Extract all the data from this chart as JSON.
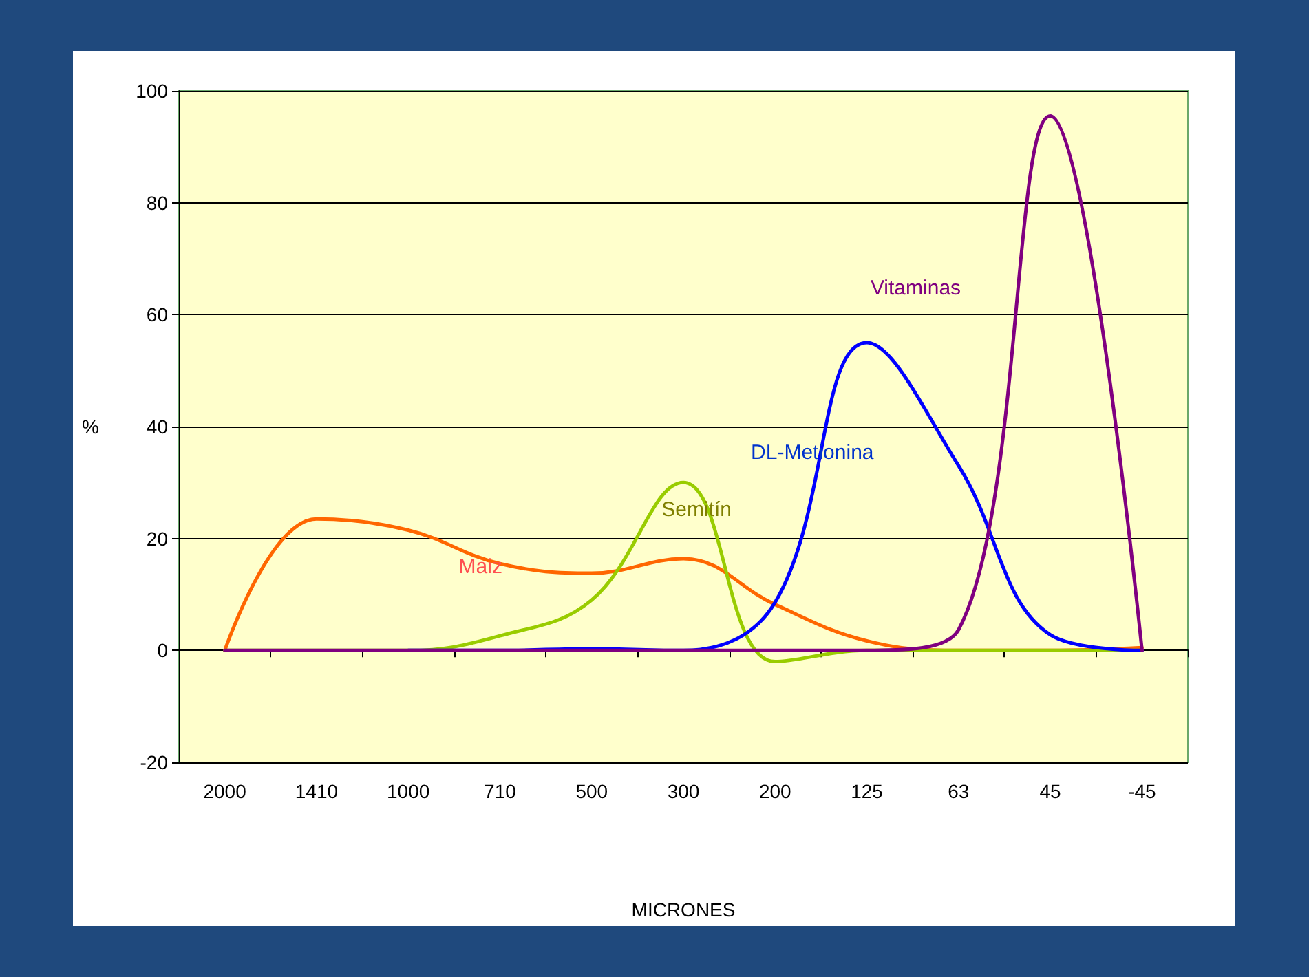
{
  "chart_data": {
    "type": "line",
    "xlabel": "MICRONES",
    "ylabel": "%",
    "categories": [
      "2000",
      "1410",
      "1000",
      "710",
      "500",
      "300",
      "200",
      "125",
      "63",
      "45",
      "-45"
    ],
    "series": [
      {
        "name": "Maiz",
        "color": "#ff6600",
        "values": [
          0,
          23.5,
          21.5,
          15.5,
          13.8,
          16.4,
          8.2,
          1.7,
          0,
          0,
          0.5
        ]
      },
      {
        "name": "Semitín",
        "color": "#99cc00",
        "values": [
          0,
          0,
          0,
          2.6,
          9,
          30,
          -2,
          0,
          0,
          0,
          0
        ]
      },
      {
        "name": "DL-Metionina",
        "color": "#0000ff",
        "values": [
          null,
          null,
          0,
          0,
          0.3,
          0,
          8.6,
          55,
          33,
          2.8,
          0
        ]
      },
      {
        "name": "Vitaminas",
        "color": "#800080",
        "values": [
          0,
          0,
          0,
          0,
          0,
          0,
          0,
          0,
          3.7,
          95.5,
          0
        ]
      }
    ],
    "ylim": [
      -20,
      100
    ],
    "yticks": [
      -20,
      0,
      20,
      40,
      60,
      80,
      100
    ],
    "grid": "y",
    "marker": "none",
    "line_style": "solid"
  }
}
